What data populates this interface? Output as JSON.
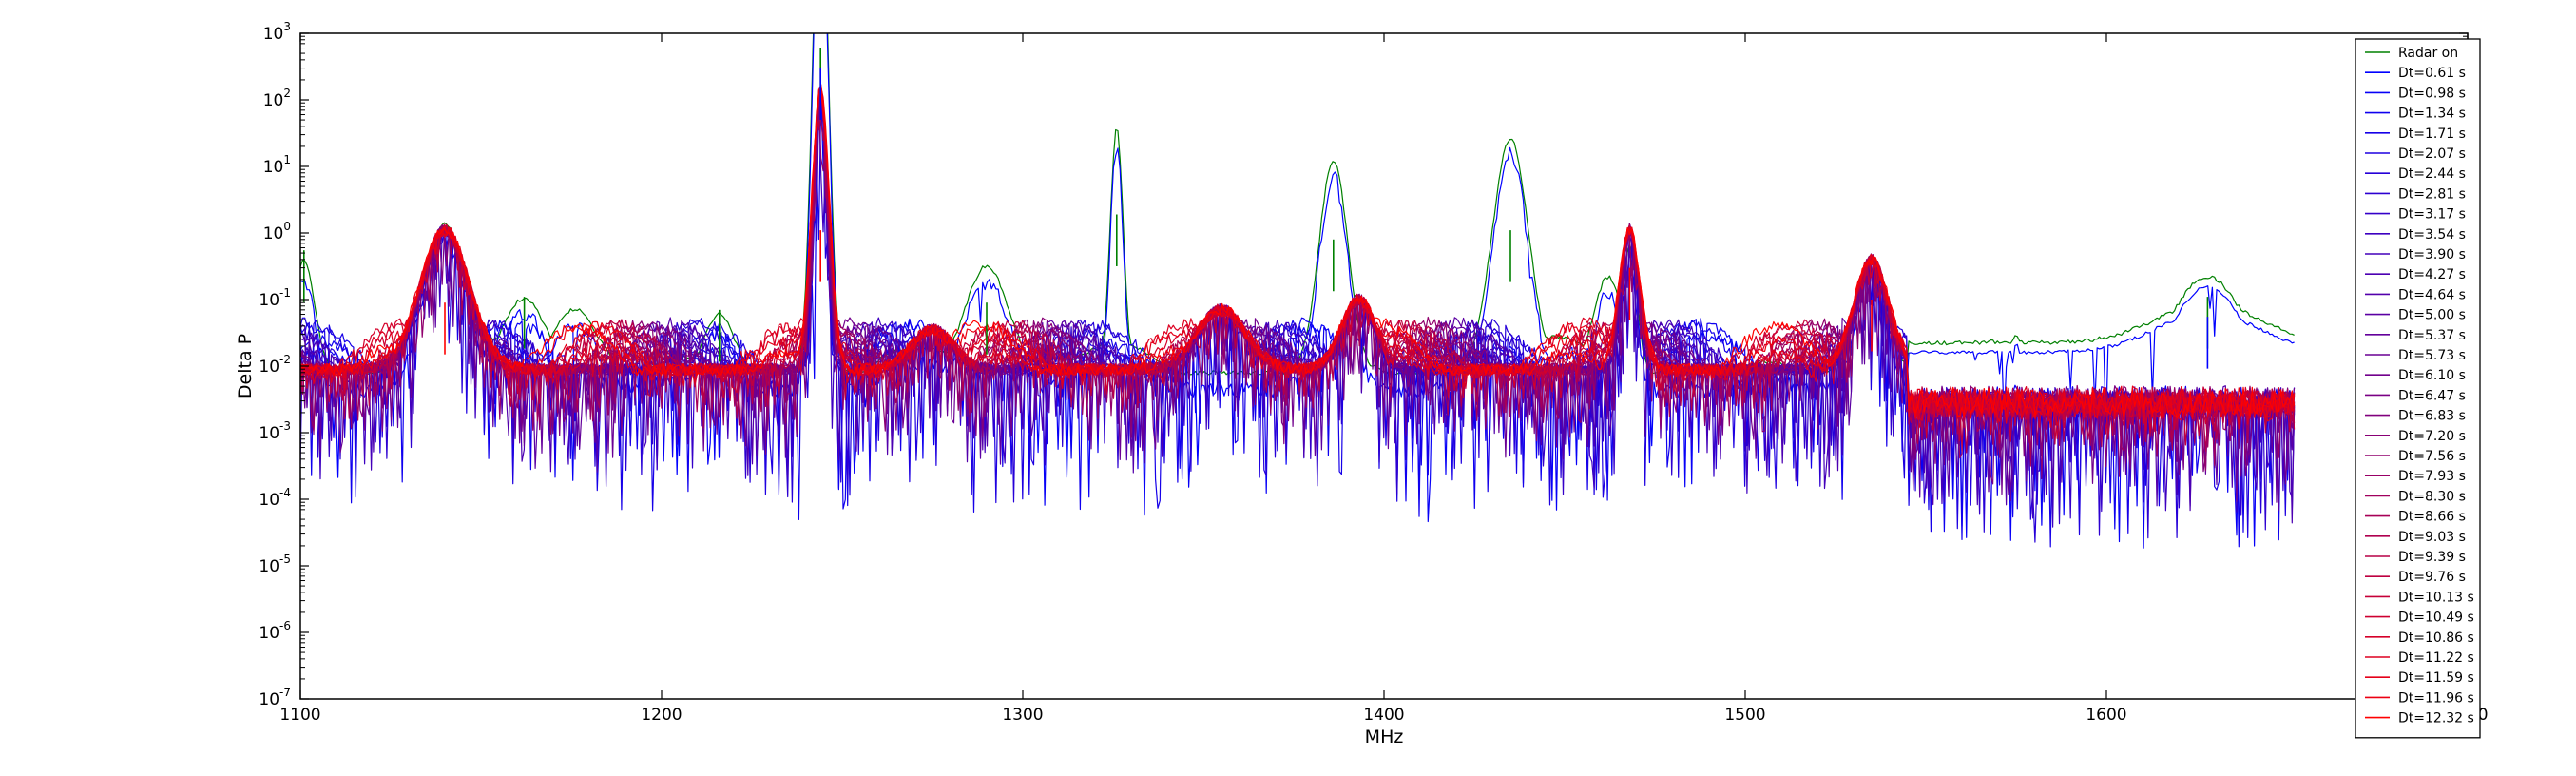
{
  "chart_data": {
    "type": "line",
    "title": "",
    "xlabel": "MHz",
    "ylabel": "Delta P",
    "xlim": [
      1100,
      1700
    ],
    "ylim": [
      1e-07,
      1000
    ],
    "yscale": "log",
    "grid": false,
    "legend_position": "top-right",
    "x_ticks": [
      "1100",
      "1200",
      "1300",
      "1400",
      "1500",
      "1600",
      "1700"
    ],
    "y_ticks": [
      {
        "base": "10",
        "exp": "-7"
      },
      {
        "base": "10",
        "exp": "-6"
      },
      {
        "base": "10",
        "exp": "-5"
      },
      {
        "base": "10",
        "exp": "-4"
      },
      {
        "base": "10",
        "exp": "-3"
      },
      {
        "base": "10",
        "exp": "-2"
      },
      {
        "base": "10",
        "exp": "-1"
      },
      {
        "base": "10",
        "exp": "0"
      },
      {
        "base": "10",
        "exp": "1"
      },
      {
        "base": "10",
        "exp": "2"
      },
      {
        "base": "10",
        "exp": "3"
      }
    ],
    "x_data_max": 1652,
    "series": [
      {
        "name": "Radar on",
        "color": "#008000"
      },
      {
        "name": "Dt=0.61 s",
        "color": "#0000ff"
      },
      {
        "name": "Dt=0.98 s",
        "color": "#0700f7"
      },
      {
        "name": "Dt=1.34 s",
        "color": "#0f00ef"
      },
      {
        "name": "Dt=1.71 s",
        "color": "#1600e8"
      },
      {
        "name": "Dt=2.07 s",
        "color": "#1e00e0"
      },
      {
        "name": "Dt=2.44 s",
        "color": "#2600d8"
      },
      {
        "name": "Dt=2.81 s",
        "color": "#2d00d1"
      },
      {
        "name": "Dt=3.17 s",
        "color": "#3500c9"
      },
      {
        "name": "Dt=3.54 s",
        "color": "#3d00c1"
      },
      {
        "name": "Dt=3.90 s",
        "color": "#4400ba"
      },
      {
        "name": "Dt=4.27 s",
        "color": "#4c00b2"
      },
      {
        "name": "Dt=4.64 s",
        "color": "#5300ab"
      },
      {
        "name": "Dt=5.00 s",
        "color": "#5b00a3"
      },
      {
        "name": "Dt=5.37 s",
        "color": "#63009b"
      },
      {
        "name": "Dt=5.73 s",
        "color": "#6a0094"
      },
      {
        "name": "Dt=6.10 s",
        "color": "#72008c"
      },
      {
        "name": "Dt=6.47 s",
        "color": "#7a0084"
      },
      {
        "name": "Dt=6.83 s",
        "color": "#81007d"
      },
      {
        "name": "Dt=7.20 s",
        "color": "#890075"
      },
      {
        "name": "Dt=7.56 s",
        "color": "#91006d"
      },
      {
        "name": "Dt=7.93 s",
        "color": "#980066"
      },
      {
        "name": "Dt=8.30 s",
        "color": "#a0005e"
      },
      {
        "name": "Dt=8.66 s",
        "color": "#a70057"
      },
      {
        "name": "Dt=9.03 s",
        "color": "#af004f"
      },
      {
        "name": "Dt=9.39 s",
        "color": "#b70047"
      },
      {
        "name": "Dt=9.76 s",
        "color": "#be0040"
      },
      {
        "name": "Dt=10.13 s",
        "color": "#c60038"
      },
      {
        "name": "Dt=10.49 s",
        "color": "#ce0030"
      },
      {
        "name": "Dt=10.86 s",
        "color": "#d50029"
      },
      {
        "name": "Dt=11.22 s",
        "color": "#dd0021"
      },
      {
        "name": "Dt=11.59 s",
        "color": "#e50019"
      },
      {
        "name": "Dt=11.96 s",
        "color": "#ec0012"
      },
      {
        "name": "Dt=12.32 s",
        "color": "#ff0000"
      }
    ],
    "peaks": [
      {
        "x": 1101,
        "y": 0.55,
        "series": "Radar on"
      },
      {
        "x": 1140,
        "y": 0.09,
        "series": "Dt=12.32 s"
      },
      {
        "x": 1162,
        "y": 0.11,
        "series": "Radar on"
      },
      {
        "x": 1216,
        "y": 0.07,
        "series": "Radar on"
      },
      {
        "x": 1244,
        "y": 600,
        "series": "Radar on"
      },
      {
        "x": 1244,
        "y": 300,
        "series": "Dt=0.61 s"
      },
      {
        "x": 1244,
        "y": 1.1,
        "series": "Dt=12.32 s"
      },
      {
        "x": 1290,
        "y": 0.09,
        "series": "Radar on"
      },
      {
        "x": 1326,
        "y": 1.9,
        "series": "Radar on"
      },
      {
        "x": 1386,
        "y": 0.8,
        "series": "Radar on"
      },
      {
        "x": 1435,
        "y": 1.1,
        "series": "Radar on"
      },
      {
        "x": 1468,
        "y": 0.3,
        "series": "Dt=12.32 s"
      },
      {
        "x": 1535,
        "y": 0.1,
        "series": "Dt=12.32 s"
      },
      {
        "x": 1628,
        "y": 0.11,
        "series": "Radar on"
      },
      {
        "x": 1628,
        "y": 0.055,
        "series": "Dt=0.61 s"
      }
    ]
  }
}
